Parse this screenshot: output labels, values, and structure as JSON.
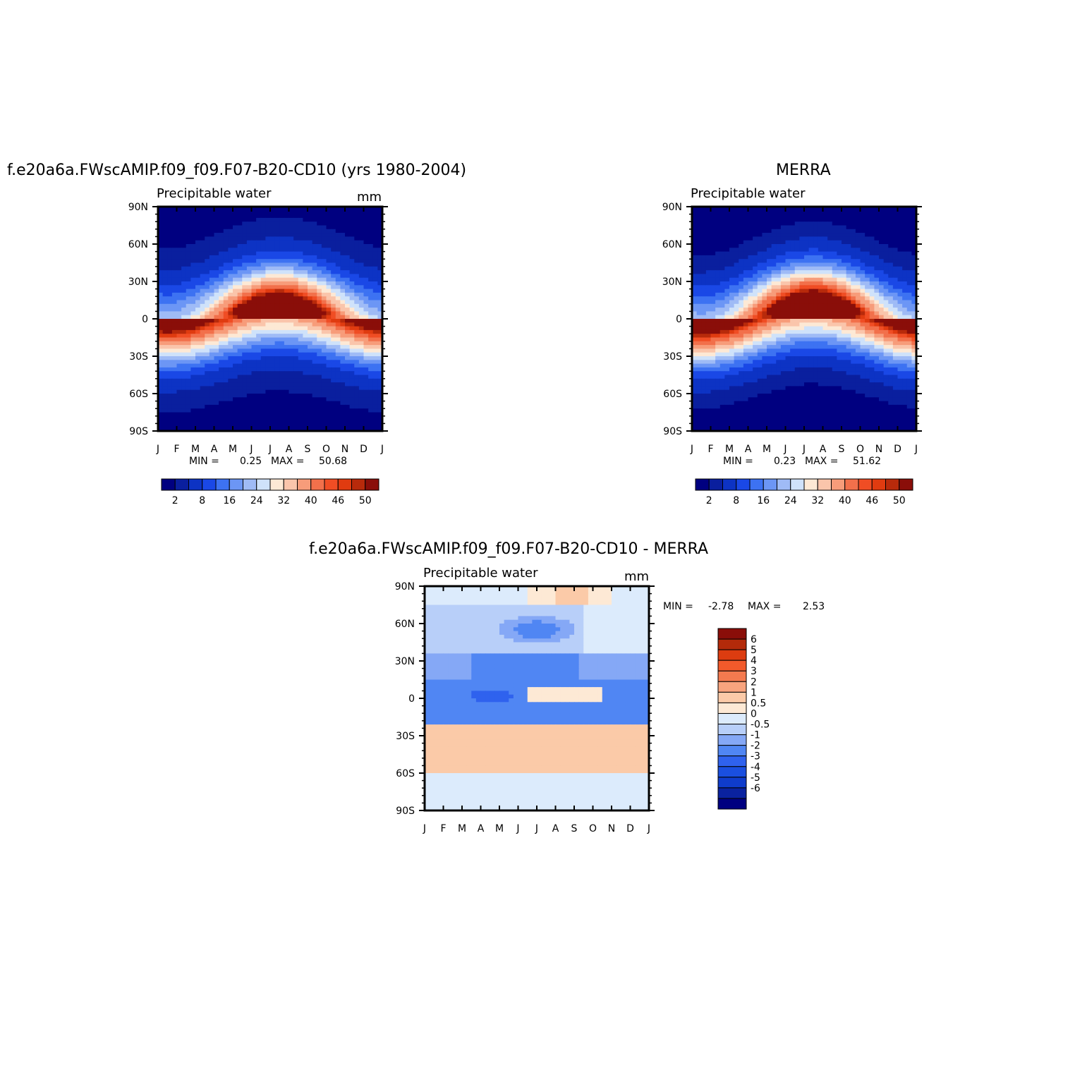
{
  "colors": {
    "abs_scale": [
      "#000080",
      "#0a1f9e",
      "#0d33c4",
      "#1a48e6",
      "#3d72f2",
      "#6c96f5",
      "#9fbbf6",
      "#cfe2fa",
      "#fde9d5",
      "#fac5ab",
      "#f79c7a",
      "#f2704b",
      "#f04d24",
      "#e03b10",
      "#b82a0b",
      "#8a0e09"
    ],
    "diff_scale": [
      "#000080",
      "#0a22a0",
      "#0f3ccc",
      "#1a4fe0",
      "#2f62ee",
      "#5086f3",
      "#85a8f6",
      "#b8cff9",
      "#dcebfc",
      "#fde9d5",
      "#fbcaa8",
      "#f8a47e",
      "#f47a4f",
      "#f25a2b",
      "#dc3c10",
      "#b32a0a",
      "#8a0e09"
    ]
  },
  "chart_data": [
    {
      "type": "heatmap",
      "title": "f.e20a6a.FWscAMIP.f09_f09.F07-B20-CD10 (yrs 1980-2004)",
      "subtitle": "Precipitable water",
      "units": "mm",
      "x_tick_labels": [
        "J",
        "F",
        "M",
        "A",
        "M",
        "J",
        "J",
        "A",
        "S",
        "O",
        "N",
        "D",
        "J"
      ],
      "y_tick_labels": [
        "90N",
        "60N",
        "30N",
        "0",
        "30S",
        "60S",
        "90S"
      ],
      "ylim": [
        -90,
        90
      ],
      "stats": {
        "min_label": "MIN =",
        "min": "0.25",
        "max_label": "MAX =",
        "max": "50.68"
      },
      "colorbar_labels": [
        "2",
        "8",
        "16",
        "24",
        "32",
        "40",
        "46",
        "50"
      ],
      "colorbar_levels": [
        0,
        2,
        4,
        8,
        12,
        16,
        20,
        24,
        28,
        32,
        36,
        40,
        44,
        46,
        48,
        50
      ],
      "field": {
        "peak_value": 50.68,
        "equator_value": 42,
        "pole_value": 1.5,
        "itcz_lat_jan": -5,
        "itcz_lat_aug": 10,
        "width_deg": 28
      }
    },
    {
      "type": "heatmap",
      "title": "MERRA",
      "subtitle": "Precipitable water",
      "units": "",
      "x_tick_labels": [
        "J",
        "F",
        "M",
        "A",
        "M",
        "J",
        "J",
        "A",
        "S",
        "O",
        "N",
        "D",
        "J"
      ],
      "y_tick_labels": [
        "90N",
        "60N",
        "30N",
        "0",
        "30S",
        "60S",
        "90S"
      ],
      "ylim": [
        -90,
        90
      ],
      "stats": {
        "min_label": "MIN =",
        "min": "0.23",
        "max_label": "MAX =",
        "max": "51.62"
      },
      "colorbar_labels": [
        "2",
        "8",
        "16",
        "24",
        "32",
        "40",
        "46",
        "50"
      ],
      "colorbar_levels": [
        0,
        2,
        4,
        8,
        12,
        16,
        20,
        24,
        28,
        32,
        36,
        40,
        44,
        46,
        48,
        50
      ],
      "field": {
        "peak_value": 51.62,
        "equator_value": 43,
        "pole_value": 1.2,
        "itcz_lat_jan": -6,
        "itcz_lat_aug": 11,
        "width_deg": 28
      }
    },
    {
      "type": "heatmap",
      "title": "f.e20a6a.FWscAMIP.f09_f09.F07-B20-CD10 - MERRA",
      "subtitle": "Precipitable water",
      "units": "mm",
      "x_tick_labels": [
        "J",
        "F",
        "M",
        "A",
        "M",
        "J",
        "J",
        "A",
        "S",
        "O",
        "N",
        "D",
        "J"
      ],
      "y_tick_labels": [
        "90N",
        "60N",
        "30N",
        "0",
        "30S",
        "60S",
        "90S"
      ],
      "ylim": [
        -90,
        90
      ],
      "stats": {
        "min_label": "MIN =",
        "min": "-2.78",
        "max_label": "MAX =",
        "max": "2.53"
      },
      "colorbar_labels": [
        "6",
        "5",
        "4",
        "3",
        "2",
        "1",
        "0.5",
        "0",
        "-0.5",
        "-1",
        "-2",
        "-3",
        "-4",
        "-5",
        "-6"
      ],
      "colorbar_levels": [
        -6,
        -5,
        -4,
        -3,
        -2,
        -1,
        -0.5,
        0,
        0.5,
        1,
        2,
        3,
        4,
        5,
        6
      ]
    }
  ]
}
